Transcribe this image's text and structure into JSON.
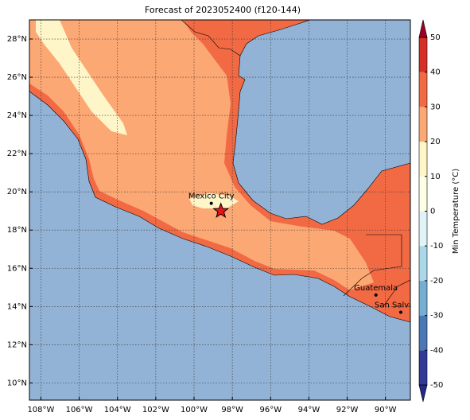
{
  "title": "Forecast of 2023052400 (f120-144)",
  "map": {
    "lon_range": [
      -108.6,
      -88.7
    ],
    "lat_range": [
      9.1,
      29.0
    ],
    "grid": true,
    "lon_ticks": [
      {
        "value": -108,
        "label": "108°W"
      },
      {
        "value": -106,
        "label": "106°W"
      },
      {
        "value": -104,
        "label": "104°W"
      },
      {
        "value": -102,
        "label": "102°W"
      },
      {
        "value": -100,
        "label": "100°W"
      },
      {
        "value": -98,
        "label": "98°W"
      },
      {
        "value": -96,
        "label": "96°W"
      },
      {
        "value": -94,
        "label": "94°W"
      },
      {
        "value": -92,
        "label": "92°W"
      },
      {
        "value": -90,
        "label": "90°W"
      }
    ],
    "lat_ticks": [
      {
        "value": 10,
        "label": "10°N"
      },
      {
        "value": 12,
        "label": "12°N"
      },
      {
        "value": 14,
        "label": "14°N"
      },
      {
        "value": 16,
        "label": "16°N"
      },
      {
        "value": 18,
        "label": "18°N"
      },
      {
        "value": 20,
        "label": "20°N"
      },
      {
        "value": 22,
        "label": "22°N"
      },
      {
        "value": 24,
        "label": "24°N"
      },
      {
        "value": 26,
        "label": "26°N"
      },
      {
        "value": 28,
        "label": "28°N"
      }
    ],
    "places": [
      {
        "name": "Mexico City",
        "lon": -99.1,
        "lat": 19.4
      },
      {
        "name": "Guatemala",
        "lon": -90.5,
        "lat": 14.6
      },
      {
        "name": "San Salvador",
        "lon": -89.2,
        "lat": 13.7
      }
    ],
    "forecast_point": {
      "lon": -98.6,
      "lat": 19.0
    }
  },
  "colorbar": {
    "label": "Min Temperature (°C)",
    "ticks": [
      -50,
      -40,
      -30,
      -20,
      -10,
      0,
      10,
      20,
      30,
      40,
      50
    ],
    "colors": [
      "#2f3b97",
      "#4a78b6",
      "#76aed2",
      "#abd8e8",
      "#e2f3f7",
      "#fefee6",
      "#fef6c8",
      "#fca874",
      "#f26a44",
      "#d52f27"
    ],
    "under_color": "#232a88",
    "over_color": "#a00024"
  }
}
